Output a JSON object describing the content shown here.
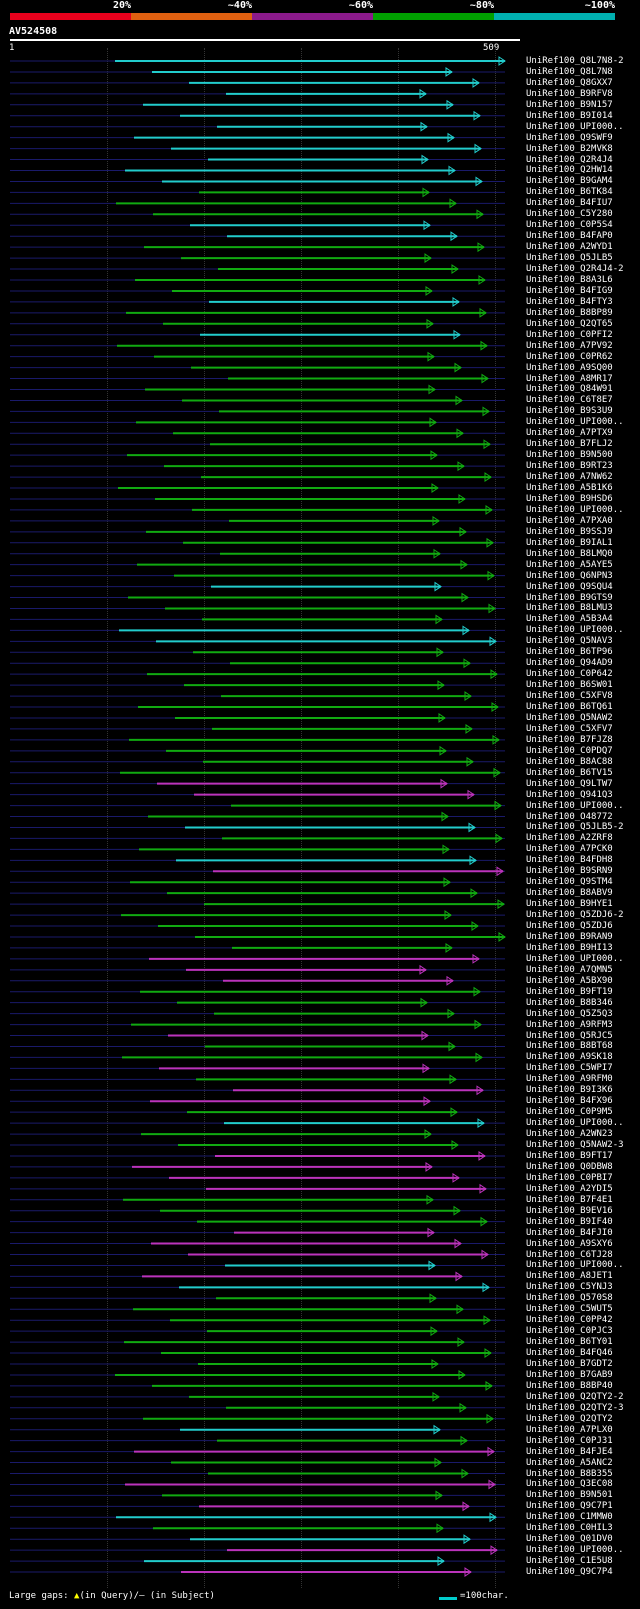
{
  "header": {
    "legend": [
      {
        "label": "20%",
        "color": "#e8001c"
      },
      {
        "label": "~40%",
        "color": "#e06010"
      },
      {
        "label": "~60%",
        "color": "#8b1a8b"
      },
      {
        "label": "~80%",
        "color": "#00a000"
      },
      {
        "label": "~100%",
        "color": "#00b0b0"
      }
    ],
    "query_id": "AV524508",
    "ruler_start": "1",
    "ruler_end": "509"
  },
  "hits": [
    {
      "id": "UniRef100_Q8L7N8-2",
      "c": "#2cc"
    },
    {
      "id": "UniRef100_Q8L7N8",
      "c": "#2cc"
    },
    {
      "id": "UniRef100_Q8GXX7",
      "c": "#2cc"
    },
    {
      "id": "UniRef100_B9RFV8",
      "c": "#2cc"
    },
    {
      "id": "UniRef100_B9N157",
      "c": "#2cc"
    },
    {
      "id": "UniRef100_B9I014",
      "c": "#2cc"
    },
    {
      "id": "UniRef100_UPI000..",
      "c": "#2cc"
    },
    {
      "id": "UniRef100_Q9SWF9",
      "c": "#2cc"
    },
    {
      "id": "UniRef100_B2MVK8",
      "c": "#2cc"
    },
    {
      "id": "UniRef100_Q2R4J4",
      "c": "#2cc"
    },
    {
      "id": "UniRef100_Q2HW14",
      "c": "#2cc"
    },
    {
      "id": "UniRef100_B9GAM4",
      "c": "#2cc"
    },
    {
      "id": "UniRef100_B6TK84",
      "c": "#1a1"
    },
    {
      "id": "UniRef100_B4FIU7",
      "c": "#1a1"
    },
    {
      "id": "UniRef100_C5Y280",
      "c": "#1a1"
    },
    {
      "id": "UniRef100_C0P5S4",
      "c": "#2cc"
    },
    {
      "id": "UniRef100_B4FAP0",
      "c": "#2cc"
    },
    {
      "id": "UniRef100_A2WYD1",
      "c": "#1a1"
    },
    {
      "id": "UniRef100_Q5JLB5",
      "c": "#1a1"
    },
    {
      "id": "UniRef100_Q2R4J4-2",
      "c": "#1a1"
    },
    {
      "id": "UniRef100_B8A3L6",
      "c": "#1a1"
    },
    {
      "id": "UniRef100_B4FIG9",
      "c": "#1a1"
    },
    {
      "id": "UniRef100_B4FTY3",
      "c": "#2cc"
    },
    {
      "id": "UniRef100_B8BP89",
      "c": "#1a1"
    },
    {
      "id": "UniRef100_Q2QT65",
      "c": "#1a1"
    },
    {
      "id": "UniRef100_C0PFI2",
      "c": "#2cc"
    },
    {
      "id": "UniRef100_A7PV92",
      "c": "#1a1"
    },
    {
      "id": "UniRef100_C0PR62",
      "c": "#1a1"
    },
    {
      "id": "UniRef100_A9SQ00",
      "c": "#1a1"
    },
    {
      "id": "UniRef100_A8MR17",
      "c": "#1a1"
    },
    {
      "id": "UniRef100_Q84W91",
      "c": "#1a1"
    },
    {
      "id": "UniRef100_C6T8E7",
      "c": "#1a1"
    },
    {
      "id": "UniRef100_B9S3U9",
      "c": "#1a1"
    },
    {
      "id": "UniRef100_UPI000..",
      "c": "#1a1"
    },
    {
      "id": "UniRef100_A7PTX9",
      "c": "#1a1"
    },
    {
      "id": "UniRef100_B7FLJ2",
      "c": "#1a1"
    },
    {
      "id": "UniRef100_B9N500",
      "c": "#1a1"
    },
    {
      "id": "UniRef100_B9RT23",
      "c": "#1a1"
    },
    {
      "id": "UniRef100_A7NW62",
      "c": "#1a1"
    },
    {
      "id": "UniRef100_A5B1K6",
      "c": "#1a1"
    },
    {
      "id": "UniRef100_B9HSD6",
      "c": "#1a1"
    },
    {
      "id": "UniRef100_UPI000..",
      "c": "#1a1"
    },
    {
      "id": "UniRef100_A7PXA0",
      "c": "#1a1"
    },
    {
      "id": "UniRef100_B9SSJ9",
      "c": "#1a1"
    },
    {
      "id": "UniRef100_B9IAL1",
      "c": "#1a1"
    },
    {
      "id": "UniRef100_B8LMQ0",
      "c": "#1a1"
    },
    {
      "id": "UniRef100_A5AYE5",
      "c": "#1a1"
    },
    {
      "id": "UniRef100_Q6NPN3",
      "c": "#1a1"
    },
    {
      "id": "UniRef100_Q9SQU4",
      "c": "#2cc"
    },
    {
      "id": "UniRef100_B9GTS9",
      "c": "#1a1"
    },
    {
      "id": "UniRef100_B8LMU3",
      "c": "#1a1"
    },
    {
      "id": "UniRef100_A5B3A4",
      "c": "#1a1"
    },
    {
      "id": "UniRef100_UPI000..",
      "c": "#2cc"
    },
    {
      "id": "UniRef100_Q5NAV3",
      "c": "#2cc"
    },
    {
      "id": "UniRef100_B6TP96",
      "c": "#1a1"
    },
    {
      "id": "UniRef100_Q94AD9",
      "c": "#1a1"
    },
    {
      "id": "UniRef100_C0P642",
      "c": "#1a1"
    },
    {
      "id": "UniRef100_B6SW01",
      "c": "#1a1"
    },
    {
      "id": "UniRef100_C5XFV8",
      "c": "#1a1"
    },
    {
      "id": "UniRef100_B6TQ61",
      "c": "#1a1"
    },
    {
      "id": "UniRef100_Q5NAW2",
      "c": "#1a1"
    },
    {
      "id": "UniRef100_C5XFV7",
      "c": "#1a1"
    },
    {
      "id": "UniRef100_B7FJZ8",
      "c": "#1a1"
    },
    {
      "id": "UniRef100_C0PDQ7",
      "c": "#1a1"
    },
    {
      "id": "UniRef100_B8AC88",
      "c": "#1a1"
    },
    {
      "id": "UniRef100_B6TV15",
      "c": "#1a1"
    },
    {
      "id": "UniRef100_Q9LTW7",
      "c": "#b3b"
    },
    {
      "id": "UniRef100_Q941Q3",
      "c": "#b3b"
    },
    {
      "id": "UniRef100_UPI000..",
      "c": "#1a1"
    },
    {
      "id": "UniRef100_O48772",
      "c": "#1a1"
    },
    {
      "id": "UniRef100_Q5JLB5-2",
      "c": "#2cc"
    },
    {
      "id": "UniRef100_A2ZRF8",
      "c": "#1a1"
    },
    {
      "id": "UniRef100_A7PCK0",
      "c": "#1a1"
    },
    {
      "id": "UniRef100_B4FDH8",
      "c": "#2cc"
    },
    {
      "id": "UniRef100_B9SRN9",
      "c": "#b3b"
    },
    {
      "id": "UniRef100_Q9STM4",
      "c": "#1a1"
    },
    {
      "id": "UniRef100_B8ABV9",
      "c": "#1a1"
    },
    {
      "id": "UniRef100_B9HYE1",
      "c": "#1a1"
    },
    {
      "id": "UniRef100_Q5ZDJ6-2",
      "c": "#1a1"
    },
    {
      "id": "UniRef100_Q5ZDJ6",
      "c": "#1a1"
    },
    {
      "id": "UniRef100_B9RAN9",
      "c": "#1a1"
    },
    {
      "id": "UniRef100_B9HI13",
      "c": "#1a1"
    },
    {
      "id": "UniRef100_UPI000..",
      "c": "#b3b"
    },
    {
      "id": "UniRef100_A7QMN5",
      "c": "#b3b"
    },
    {
      "id": "UniRef100_A5BX90",
      "c": "#b3b"
    },
    {
      "id": "UniRef100_B9FT19",
      "c": "#1a1"
    },
    {
      "id": "UniRef100_B8B346",
      "c": "#1a1"
    },
    {
      "id": "UniRef100_Q5Z5Q3",
      "c": "#1a1"
    },
    {
      "id": "UniRef100_A9RFM3",
      "c": "#1a1"
    },
    {
      "id": "UniRef100_Q5RJC5",
      "c": "#b3b"
    },
    {
      "id": "UniRef100_B8BT68",
      "c": "#1a1"
    },
    {
      "id": "UniRef100_A9SK18",
      "c": "#1a1"
    },
    {
      "id": "UniRef100_C5WPI7",
      "c": "#b3b"
    },
    {
      "id": "UniRef100_A9RFM0",
      "c": "#1a1"
    },
    {
      "id": "UniRef100_B9I3K6",
      "c": "#b3b"
    },
    {
      "id": "UniRef100_B4FX96",
      "c": "#b3b"
    },
    {
      "id": "UniRef100_C0P9M5",
      "c": "#1a1"
    },
    {
      "id": "UniRef100_UPI000..",
      "c": "#2cc"
    },
    {
      "id": "UniRef100_A2WN23",
      "c": "#1a1"
    },
    {
      "id": "UniRef100_Q5NAW2-3",
      "c": "#1a1"
    },
    {
      "id": "UniRef100_B9FT17",
      "c": "#b3b"
    },
    {
      "id": "UniRef100_Q0DBW8",
      "c": "#b3b"
    },
    {
      "id": "UniRef100_C0PBI7",
      "c": "#b3b"
    },
    {
      "id": "UniRef100_A2YDI5",
      "c": "#b3b"
    },
    {
      "id": "UniRef100_B7F4E1",
      "c": "#1a1"
    },
    {
      "id": "UniRef100_B9EV16",
      "c": "#1a1"
    },
    {
      "id": "UniRef100_B9IF40",
      "c": "#1a1"
    },
    {
      "id": "UniRef100_B4FJI0",
      "c": "#b3b"
    },
    {
      "id": "UniRef100_A9SXY6",
      "c": "#b3b"
    },
    {
      "id": "UniRef100_C6TJ28",
      "c": "#b3b"
    },
    {
      "id": "UniRef100_UPI000..",
      "c": "#2cc"
    },
    {
      "id": "UniRef100_A8JET1",
      "c": "#b3b"
    },
    {
      "id": "UniRef100_C5YNJ3",
      "c": "#2cc"
    },
    {
      "id": "UniRef100_Q570S8",
      "c": "#1a1"
    },
    {
      "id": "UniRef100_C5WUT5",
      "c": "#1a1"
    },
    {
      "id": "UniRef100_C0PP42",
      "c": "#1a1"
    },
    {
      "id": "UniRef100_C0PJC3",
      "c": "#1a1"
    },
    {
      "id": "UniRef100_B6TY01",
      "c": "#1a1"
    },
    {
      "id": "UniRef100_B4FQ46",
      "c": "#1a1"
    },
    {
      "id": "UniRef100_B7GDT2",
      "c": "#1a1"
    },
    {
      "id": "UniRef100_B7GAB9",
      "c": "#1a1"
    },
    {
      "id": "UniRef100_B8BP40",
      "c": "#1a1"
    },
    {
      "id": "UniRef100_Q2QTY2-2",
      "c": "#1a1"
    },
    {
      "id": "UniRef100_Q2QTY2-3",
      "c": "#1a1"
    },
    {
      "id": "UniRef100_Q2QTY2",
      "c": "#1a1"
    },
    {
      "id": "UniRef100_A7PLX0",
      "c": "#2cc"
    },
    {
      "id": "UniRef100_C0PJ31",
      "c": "#1a1"
    },
    {
      "id": "UniRef100_B4FJE4",
      "c": "#b3b"
    },
    {
      "id": "UniRef100_A5ANC2",
      "c": "#1a1"
    },
    {
      "id": "UniRef100_B8B355",
      "c": "#1a1"
    },
    {
      "id": "UniRef100_Q3EC08",
      "c": "#b3b"
    },
    {
      "id": "UniRef100_B9N501",
      "c": "#1a1"
    },
    {
      "id": "UniRef100_Q9C7P1",
      "c": "#b3b"
    },
    {
      "id": "UniRef100_C1MMW0",
      "c": "#2cc"
    },
    {
      "id": "UniRef100_C0HIL3",
      "c": "#1a1"
    },
    {
      "id": "UniRef100_Q01DV0",
      "c": "#2cc"
    },
    {
      "id": "UniRef100_UPI000..",
      "c": "#b3b"
    },
    {
      "id": "UniRef100_C1E5U8",
      "c": "#2cc"
    },
    {
      "id": "UniRef100_Q9C7P4",
      "c": "#b3b"
    }
  ],
  "footer": {
    "label": "Large gaps:",
    "query_gap": "(in Query)/",
    "subject_gap": "– (in Subject)",
    "scale": "=100char."
  }
}
